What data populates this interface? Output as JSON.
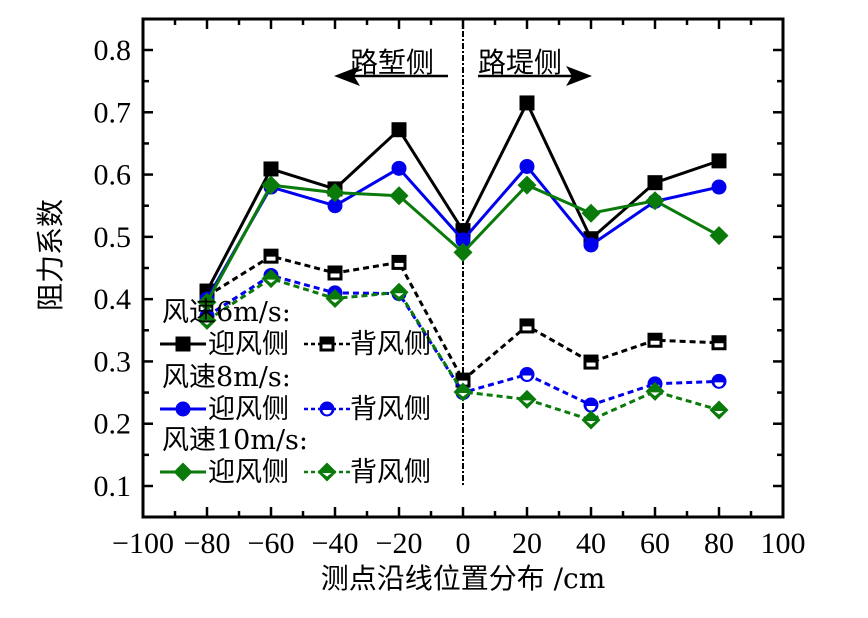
{
  "chart_data": {
    "type": "line",
    "title": "",
    "xlabel": "测点沿线位置分布 /cm",
    "ylabel": "阻力系数",
    "xlim": [
      -100,
      100
    ],
    "ylim": [
      0.05,
      0.85
    ],
    "xticks": [
      -100,
      -80,
      -60,
      -40,
      -20,
      0,
      20,
      40,
      60,
      80,
      100
    ],
    "xtick_labels": [
      "−100",
      "−80",
      "−60",
      "−40",
      "−20",
      "0",
      "20",
      "40",
      "60",
      "80",
      "100"
    ],
    "yticks": [
      0.1,
      0.2,
      0.3,
      0.4,
      0.5,
      0.6,
      0.7,
      0.8
    ],
    "ytick_labels": [
      "0.1",
      "0.2",
      "0.3",
      "0.4",
      "0.5",
      "0.6",
      "0.7",
      "0.8"
    ],
    "grid": false,
    "x": [
      -80,
      -60,
      -40,
      -20,
      0,
      20,
      40,
      60,
      80
    ],
    "series": [
      {
        "name": "风速6m/s 迎风侧",
        "color": "#000000",
        "marker": "square",
        "line": "solid",
        "values": [
          0.413,
          0.609,
          0.577,
          0.672,
          0.51,
          0.715,
          0.497,
          0.587,
          0.622
        ]
      },
      {
        "name": "风速6m/s 背风侧",
        "color": "#000000",
        "marker": "square-half",
        "line": "dashed",
        "values": [
          0.405,
          0.469,
          0.442,
          0.459,
          0.27,
          0.357,
          0.299,
          0.334,
          0.33
        ]
      },
      {
        "name": "风速8m/s 迎风侧",
        "color": "#0000ee",
        "marker": "circle",
        "line": "solid",
        "values": [
          0.4,
          0.58,
          0.55,
          0.61,
          0.495,
          0.613,
          0.487,
          0.557,
          0.58
        ]
      },
      {
        "name": "风速8m/s 背风侧",
        "color": "#0000ee",
        "marker": "circle-half",
        "line": "dashed",
        "values": [
          0.373,
          0.438,
          0.41,
          0.409,
          0.25,
          0.279,
          0.23,
          0.264,
          0.268
        ]
      },
      {
        "name": "风速10m/s 迎风侧",
        "color": "#0a7a0a",
        "marker": "diamond",
        "line": "solid",
        "values": [
          0.395,
          0.583,
          0.571,
          0.566,
          0.475,
          0.583,
          0.538,
          0.558,
          0.502
        ]
      },
      {
        "name": "风速10m/s 背风侧",
        "color": "#0a7a0a",
        "marker": "diamond-half",
        "line": "dashed",
        "values": [
          0.366,
          0.433,
          0.401,
          0.411,
          0.251,
          0.239,
          0.206,
          0.252,
          0.222
        ]
      }
    ],
    "annotations": [
      {
        "text": "路堑侧",
        "arrow": "left"
      },
      {
        "text": "路堤侧",
        "arrow": "right"
      }
    ],
    "divider_x": 0,
    "legend": {
      "placement": "bottom-left",
      "groups": [
        {
          "title": "风速6m/s:",
          "windward": "迎风侧",
          "leeward": "背风侧",
          "color": "#000000",
          "marker": "square"
        },
        {
          "title": "风速8m/s:",
          "windward": "迎风侧",
          "leeward": "背风侧",
          "color": "#0000ee",
          "marker": "circle"
        },
        {
          "title": "风速10m/s:",
          "windward": "迎风侧",
          "leeward": "背风侧",
          "color": "#0a7a0a",
          "marker": "diamond"
        }
      ]
    }
  }
}
